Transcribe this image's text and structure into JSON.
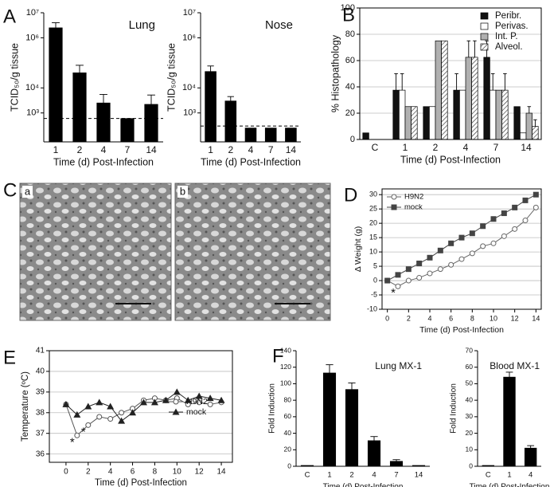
{
  "chart_data": [
    {
      "type": "bar",
      "panel": "A",
      "title": "Lung",
      "categories": [
        "1",
        "2",
        "4",
        "7",
        "14"
      ],
      "values": [
        2500000,
        40000,
        2500,
        600,
        2200
      ],
      "errors": [
        1500000,
        40000,
        3000,
        null,
        3000
      ],
      "color": "#000000",
      "log_scale": true,
      "ylim": [
        70,
        10000000
      ],
      "yticks": [
        {
          "value": 1000,
          "label": "10³"
        },
        {
          "value": 10000,
          "label": "10⁴"
        },
        {
          "value": 1000000,
          "label": "10⁶"
        },
        {
          "value": 10000000,
          "label": "10⁷"
        }
      ],
      "detection_limit": 600,
      "ylabel": "TCID₅₀/g tissue",
      "xlabel": "Time (d) Post-Infection"
    },
    {
      "type": "bar",
      "title": "Nose",
      "categories": [
        "1",
        "2",
        "4",
        "7",
        "14"
      ],
      "values": [
        45000,
        3000,
        250,
        250,
        250
      ],
      "errors": [
        30000,
        1500,
        null,
        null,
        null
      ],
      "color": "#000000",
      "log_scale": true,
      "ylim": [
        70,
        10000000
      ],
      "yticks": [
        {
          "value": 1000,
          "label": "10³"
        },
        {
          "value": 10000,
          "label": "10⁴"
        },
        {
          "value": 1000000,
          "label": "10⁶"
        },
        {
          "value": 10000000,
          "label": "10⁷"
        }
      ],
      "detection_limit": 300,
      "ylabel": "TCID₅₀/g tissue",
      "xlabel": "Time (d) Post-Infection"
    },
    {
      "type": "bar",
      "panel": "B",
      "categories": [
        "C",
        "1",
        "2",
        "4",
        "7",
        "14"
      ],
      "series": [
        {
          "name": "Peribr.",
          "color": "#111111",
          "values": [
            5,
            37.5,
            25,
            37.5,
            62.5,
            25
          ],
          "errors": [
            null,
            12.5,
            null,
            12.5,
            12.5,
            null
          ]
        },
        {
          "name": "Perivas.",
          "color": "#ffffff",
          "values": [
            0,
            37.5,
            25,
            37.5,
            37.5,
            5
          ],
          "errors": [
            null,
            12.5,
            null,
            null,
            12.5,
            null
          ]
        },
        {
          "name": "Int. P.",
          "color": "#b0b0b0",
          "values": [
            0,
            25,
            75,
            62.5,
            37.5,
            20
          ],
          "errors": [
            null,
            null,
            null,
            12.5,
            null,
            5
          ]
        },
        {
          "name": "Alveol.",
          "color": "#ffffff",
          "pattern": "hatch",
          "values": [
            0,
            25,
            75,
            62.5,
            37.5,
            10
          ],
          "errors": [
            null,
            null,
            null,
            12.5,
            12.5,
            5
          ]
        }
      ],
      "ylim": [
        0,
        100
      ],
      "yticks": [
        0,
        20,
        40,
        60,
        80,
        100
      ],
      "grid": true,
      "legend": "upper right",
      "ylabel": "% Histopathology",
      "xlabel": "Time (d) Post-Infection"
    },
    {
      "type": "image",
      "panel": "C",
      "images": [
        "a",
        "b"
      ]
    },
    {
      "type": "line",
      "panel": "D",
      "x": [
        0,
        1,
        2,
        3,
        4,
        5,
        6,
        7,
        8,
        9,
        10,
        11,
        12,
        13,
        14
      ],
      "series": [
        {
          "name": "H9N2",
          "color": "#666666",
          "marker": "circle-open",
          "values": [
            0,
            -2,
            0,
            1,
            2.5,
            4,
            5.5,
            7.5,
            9.5,
            12,
            13,
            15.5,
            18,
            21,
            25.5
          ]
        },
        {
          "name": "mock",
          "color": "#444444",
          "marker": "square",
          "values": [
            0,
            2,
            4,
            6,
            8,
            10.5,
            13,
            15,
            16.5,
            19,
            21.5,
            23.5,
            25.5,
            28,
            30
          ]
        }
      ],
      "xlim": [
        -0.5,
        14.5
      ],
      "xticks": [
        0,
        2,
        4,
        6,
        8,
        10,
        12,
        14
      ],
      "ylim": [
        -10,
        32
      ],
      "yticks": [
        -10,
        -5,
        0,
        5,
        10,
        15,
        20,
        25,
        30
      ],
      "grid": true,
      "legend": "upper left",
      "annotations": [
        {
          "text": "*",
          "x": 1
        }
      ],
      "ylabel": "Δ Weight (g)",
      "xlabel": "Time (d) Post-Infection"
    },
    {
      "type": "line",
      "panel": "E",
      "x": [
        0,
        1,
        2,
        3,
        4,
        5,
        6,
        7,
        8,
        9,
        10,
        11,
        12,
        13,
        14
      ],
      "series": [
        {
          "name": "H9N2",
          "color": "#555555",
          "marker": "circle-open",
          "values": [
            38.4,
            36.9,
            37.4,
            37.8,
            37.7,
            38.0,
            38.2,
            38.6,
            38.7,
            38.6,
            38.7,
            38.4,
            38.5,
            38.4,
            38.5
          ]
        },
        {
          "name": "mock",
          "color": "#222222",
          "marker": "triangle",
          "values": [
            38.4,
            37.9,
            38.3,
            38.5,
            38.3,
            37.6,
            38.0,
            38.5,
            38.5,
            38.6,
            39.0,
            38.6,
            38.8,
            38.7,
            38.6
          ]
        }
      ],
      "xlim": [
        -1.5,
        15
      ],
      "xticks": [
        0,
        2,
        4,
        6,
        8,
        10,
        12,
        14
      ],
      "ylim": [
        35.6,
        41
      ],
      "yticks": [
        36,
        37,
        38,
        39,
        40,
        41
      ],
      "grid": true,
      "legend": "lower right",
      "annotations": [
        {
          "text": "*",
          "x": 1
        },
        {
          "text": "*",
          "x": 2
        }
      ],
      "ylabel": "Temperature (ºC)",
      "xlabel": "Time (d) Post-Infection"
    },
    {
      "type": "bar",
      "panel": "F",
      "title": "Lung MX-1",
      "categories": [
        "C",
        "1",
        "2",
        "4",
        "7",
        "14"
      ],
      "values": [
        1,
        113,
        93,
        31,
        6,
        1
      ],
      "errors": [
        null,
        10,
        8,
        5,
        2,
        null
      ],
      "color": "#000000",
      "ylim": [
        0,
        140
      ],
      "yticks": [
        0,
        20,
        40,
        60,
        80,
        100,
        120,
        140
      ],
      "ylabel": "Fold Induction",
      "xlabel": "Time (d) Post-Infection"
    },
    {
      "type": "bar",
      "title": "Blood MX-1",
      "categories": [
        "C",
        "1",
        "4"
      ],
      "values": [
        0.5,
        54,
        11
      ],
      "errors": [
        null,
        3,
        1.5
      ],
      "color": "#000000",
      "ylim": [
        0,
        70
      ],
      "yticks": [
        0,
        10,
        20,
        30,
        40,
        50,
        60,
        70
      ],
      "ylabel": "Fold Induction",
      "xlabel": "Time (d) Post-Infection"
    }
  ]
}
